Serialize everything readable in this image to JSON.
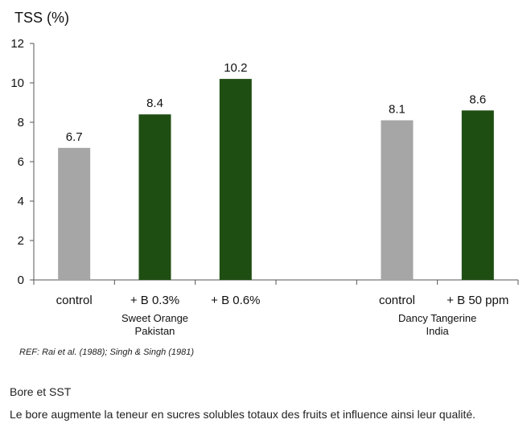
{
  "chart_data": {
    "type": "bar",
    "title": "",
    "ylabel": "TSS (%)",
    "xlabel": "",
    "ylim": [
      0,
      12
    ],
    "yticks": [
      0,
      2,
      4,
      6,
      8,
      10,
      12
    ],
    "grid": false,
    "bars": [
      {
        "label": "control",
        "value": 6.7,
        "value_label": "6.7",
        "color": "#a6a6a6"
      },
      {
        "label": "+ B 0.3%",
        "value": 8.4,
        "value_label": "8.4",
        "color": "#1f4e13"
      },
      {
        "label": "+ B 0.6%",
        "value": 10.2,
        "value_label": "10.2",
        "color": "#1f4e13"
      },
      {
        "label": "control",
        "value": 8.1,
        "value_label": "8.1",
        "color": "#a6a6a6"
      },
      {
        "label": "+ B 50 ppm",
        "value": 8.6,
        "value_label": "8.6",
        "color": "#1f4e13"
      }
    ],
    "groups": [
      {
        "line1": "Sweet Orange",
        "line2": "Pakistan"
      },
      {
        "line1": "Dancy Tangerine",
        "line2": "India"
      }
    ]
  },
  "reference": "REF: Rai et al. (1988);  Singh & Singh (1981)",
  "section": {
    "heading": "Bore et SST",
    "body": "Le bore augmente la teneur en sucres solubles totaux des fruits et influence ainsi leur qualité."
  }
}
